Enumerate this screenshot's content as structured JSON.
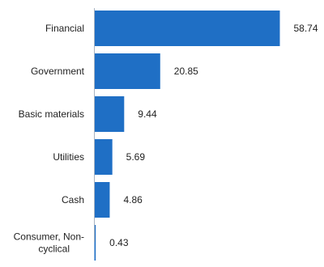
{
  "chart_data": {
    "type": "bar",
    "orientation": "horizontal",
    "categories": [
      "Financial",
      "Government",
      "Basic materials",
      "Utilities",
      "Cash",
      "Consumer, Non-cyclical"
    ],
    "category_lines": [
      [
        "Financial"
      ],
      [
        "Government"
      ],
      [
        "Basic materials"
      ],
      [
        "Utilities"
      ],
      [
        "Cash"
      ],
      [
        "Consumer, Non-",
        "cyclical"
      ]
    ],
    "values": [
      58.74,
      20.85,
      9.44,
      5.69,
      4.86,
      0.43
    ],
    "value_labels": [
      "58.74",
      "20.85",
      "9.44",
      "5.69",
      "4.86",
      "0.43"
    ],
    "xlim": [
      0,
      58.74
    ],
    "bar_color": "#1F6FC5",
    "axis_color": "#A9B4C2",
    "grid": false,
    "legend": "none"
  }
}
